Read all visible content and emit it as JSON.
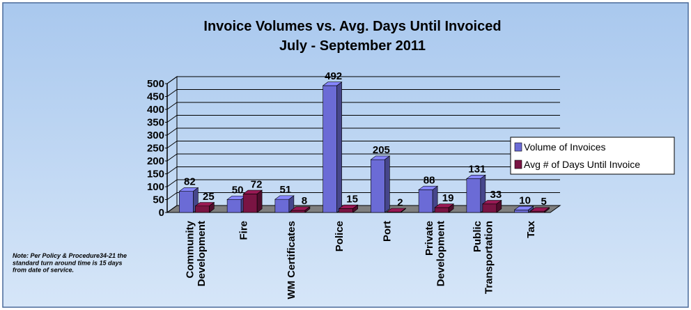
{
  "chart_data": {
    "type": "bar3d",
    "title": "Invoice Volumes vs. Avg. Days Until Invoiced",
    "subtitle": "July - September 2011",
    "categories": [
      "Community\nDevelopment",
      "Fire",
      "WM Certificates",
      "Police",
      "Port",
      "Private\nDevelopment",
      "Public\nTransportation",
      "Tax"
    ],
    "series": [
      {
        "name": "Volume of Invoices",
        "color": "#6b6bd6",
        "values": [
          82,
          50,
          51,
          492,
          205,
          88,
          131,
          10
        ]
      },
      {
        "name": "Avg # of Days Until Invoice",
        "color": "#7a1443",
        "values": [
          25,
          72,
          8,
          15,
          2,
          19,
          33,
          5
        ]
      }
    ],
    "ylim": [
      0,
      500
    ],
    "yticks": [
      0,
      50,
      100,
      150,
      200,
      250,
      300,
      350,
      400,
      450,
      500
    ],
    "grid": true,
    "legend": "right",
    "note": "Note: Per Policy  & Procedure34-21 the\nstandard turn around time is 15 days\nfrom date of service."
  }
}
